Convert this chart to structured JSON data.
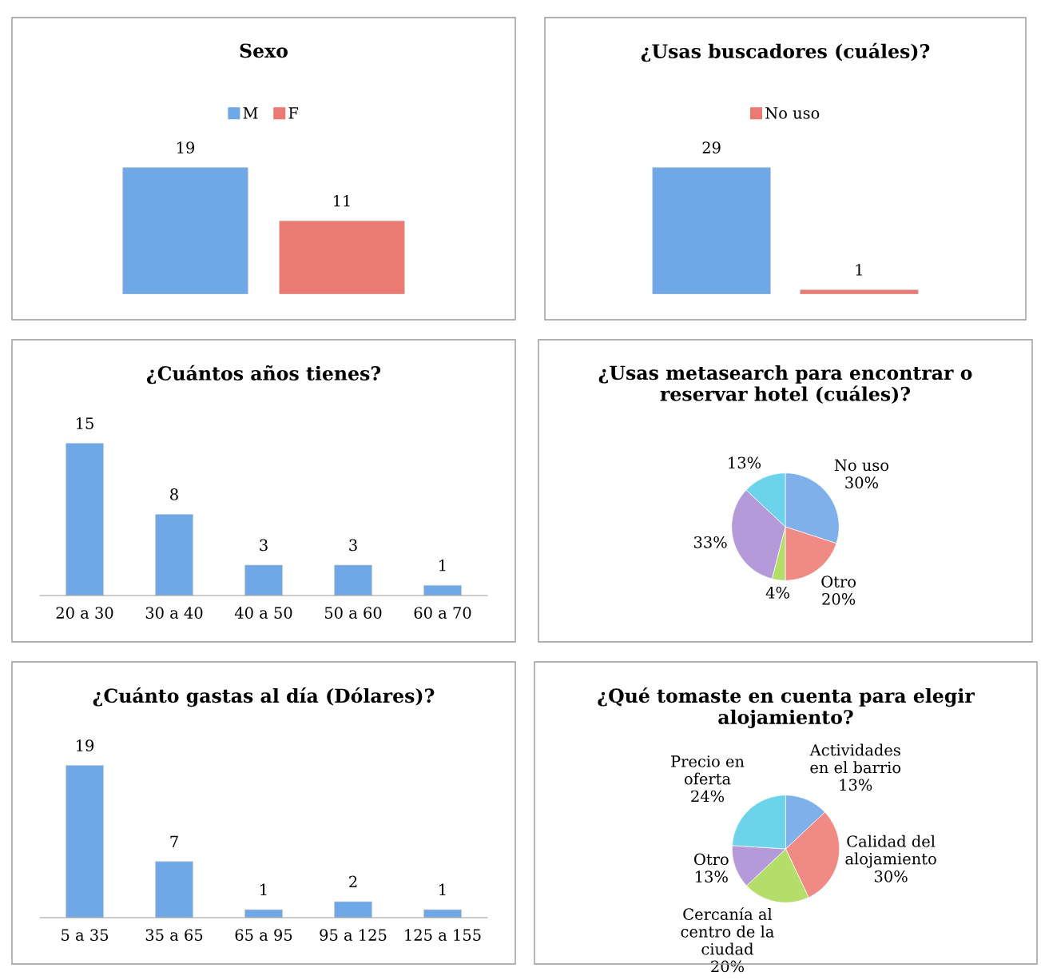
{
  "chart_data": [
    {
      "type": "bar",
      "title": "Sexo",
      "categories": [
        null
      ],
      "legend": "top",
      "data_labels": true,
      "series": [
        {
          "name": "M",
          "color": "#6fa8e6",
          "values": [
            19
          ]
        },
        {
          "name": "F",
          "color": "#ea7a72",
          "values": [
            11
          ]
        }
      ]
    },
    {
      "type": "bar",
      "title": "¿Usas buscadores (cuáles)?",
      "categories": [
        null
      ],
      "legend": "top",
      "data_labels": true,
      "series": [
        {
          "color": "#6fa8e6",
          "values": [
            29
          ]
        },
        {
          "name": "No uso",
          "color": "#ea7a72",
          "values": [
            1
          ]
        }
      ]
    },
    {
      "type": "bar",
      "title": "¿Cuántos años tienes?",
      "categories": [
        "20 a 30",
        "30 a 40",
        "40 a 50",
        "50 a 60",
        "60 a 70"
      ],
      "values": [
        15,
        8,
        3,
        3,
        1
      ],
      "color": "#6fa8e6",
      "data_labels": true
    },
    {
      "type": "pie",
      "title": "¿Usas metasearch para encontrar o\nreservar hotel (cuáles)?",
      "categories": [
        "No uso",
        "Otro",
        null,
        null,
        null
      ],
      "values": [
        30,
        20,
        4,
        33,
        13
      ],
      "value_labels": [
        "30%",
        "20%",
        "4%",
        "33%",
        "13%"
      ],
      "colors": [
        "#7fb0ea",
        "#f08a84",
        "#b5dd6a",
        "#b49ad8",
        "#6cd3ea"
      ]
    },
    {
      "type": "bar",
      "title": "¿Cuánto gastas al día (Dólares)?",
      "categories": [
        "5 a 35",
        "35 a 65",
        "65 a 95",
        "95 a 125",
        "125 a 155"
      ],
      "values": [
        19,
        7,
        1,
        2,
        1
      ],
      "color": "#6fa8e6",
      "data_labels": true
    },
    {
      "type": "pie",
      "title": "¿Qué tomaste en cuenta para elegir\nalojamiento?",
      "categories": [
        "Actividades\nen el barrio",
        "Calidad del\nalojamiento",
        "Cercanía al\ncentro de la\nciudad",
        "Otro",
        "Precio en\noferta"
      ],
      "values": [
        13,
        30,
        20,
        13,
        24
      ],
      "value_labels": [
        "13%",
        "30%",
        "20%",
        "13%",
        "24%"
      ],
      "colors": [
        "#7fb0ea",
        "#f08a84",
        "#b5dd6a",
        "#b49ad8",
        "#6cd3ea"
      ]
    }
  ]
}
